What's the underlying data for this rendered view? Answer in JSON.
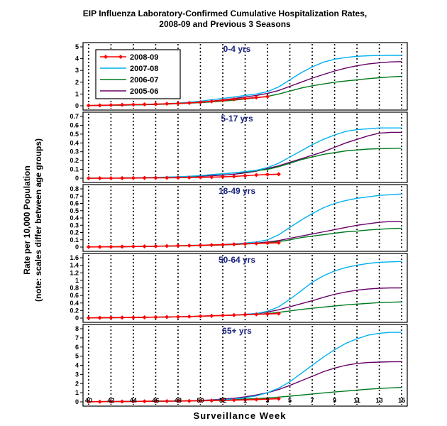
{
  "chart_data": {
    "type": "line",
    "title_line1": "EIP Influenza Laboratory-Confirmed Cumulative Hospitalization Rates,",
    "title_line2": "2008-09 and Previous 3 Seasons",
    "ylabel_line1": "Rate per 10,000 Population",
    "ylabel_line2": "(note: scales differ between age groups)",
    "xlabel": "Surveillance Week",
    "x_tick_labels": [
      "40",
      "42",
      "44",
      "46",
      "48",
      "50",
      "52",
      "1",
      "3",
      "5",
      "7",
      "9",
      "11",
      "13",
      "15"
    ],
    "x_weeks": [
      40,
      41,
      42,
      43,
      44,
      45,
      46,
      47,
      48,
      49,
      50,
      51,
      52,
      1,
      2,
      3,
      4,
      5,
      6,
      7,
      8,
      9,
      10,
      11,
      12,
      13,
      14,
      15,
      16
    ],
    "legend": [
      {
        "name": "2008-09",
        "color": "#ff0000"
      },
      {
        "name": "2007-08",
        "color": "#00b0f0"
      },
      {
        "name": "2006-07",
        "color": "#007a1f"
      },
      {
        "name": "2005-06",
        "color": "#660066"
      }
    ],
    "panels": [
      {
        "title": "0-4 yrs",
        "ylim": [
          0,
          5
        ],
        "yticks": [
          "0",
          "1",
          "2",
          "3",
          "4",
          "5"
        ],
        "series": [
          {
            "name": "2008-09",
            "values": [
              0.02,
              0.04,
              0.06,
              0.08,
              0.1,
              0.12,
              0.14,
              0.17,
              0.2,
              0.24,
              0.3,
              0.38,
              0.46,
              0.55,
              0.62,
              0.7,
              0.78
            ]
          },
          {
            "name": "2007-08",
            "values": [
              0.02,
              0.03,
              0.05,
              0.07,
              0.09,
              0.11,
              0.14,
              0.18,
              0.23,
              0.3,
              0.4,
              0.52,
              0.62,
              0.75,
              0.88,
              1.0,
              1.2,
              1.6,
              2.2,
              2.8,
              3.3,
              3.7,
              3.95,
              4.1,
              4.2,
              4.25,
              4.27,
              4.28,
              4.28
            ]
          },
          {
            "name": "2006-07",
            "values": [
              0.02,
              0.03,
              0.04,
              0.05,
              0.07,
              0.09,
              0.11,
              0.14,
              0.18,
              0.22,
              0.27,
              0.33,
              0.4,
              0.48,
              0.58,
              0.68,
              0.8,
              1.0,
              1.25,
              1.5,
              1.7,
              1.85,
              2.0,
              2.1,
              2.2,
              2.3,
              2.38,
              2.45,
              2.5
            ]
          },
          {
            "name": "2005-06",
            "values": [
              0.02,
              0.03,
              0.04,
              0.06,
              0.08,
              0.1,
              0.13,
              0.17,
              0.21,
              0.26,
              0.32,
              0.4,
              0.5,
              0.62,
              0.75,
              0.88,
              1.05,
              1.3,
              1.65,
              2.0,
              2.35,
              2.65,
              2.95,
              3.2,
              3.4,
              3.55,
              3.65,
              3.72,
              3.75
            ]
          }
        ]
      },
      {
        "title": "5-17 yrs",
        "ylim": [
          0,
          0.7
        ],
        "yticks": [
          "0",
          "0.1",
          "0.2",
          "0.3",
          "0.4",
          "0.5",
          "0.6",
          "0.7"
        ],
        "series": [
          {
            "name": "2008-09",
            "values": [
              0,
              0,
              0,
              0.001,
              0.002,
              0.003,
              0.004,
              0.005,
              0.006,
              0.008,
              0.01,
              0.012,
              0.015,
              0.02,
              0.028,
              0.036,
              0.042,
              0.045
            ]
          },
          {
            "name": "2007-08",
            "values": [
              0,
              0.001,
              0.002,
              0.003,
              0.005,
              0.007,
              0.01,
              0.013,
              0.017,
              0.022,
              0.03,
              0.04,
              0.05,
              0.06,
              0.075,
              0.09,
              0.12,
              0.17,
              0.24,
              0.31,
              0.38,
              0.44,
              0.49,
              0.53,
              0.55,
              0.56,
              0.57,
              0.57,
              0.57
            ]
          },
          {
            "name": "2006-07",
            "values": [
              0,
              0.001,
              0.002,
              0.003,
              0.004,
              0.006,
              0.008,
              0.011,
              0.015,
              0.02,
              0.028,
              0.04,
              0.05,
              0.06,
              0.07,
              0.085,
              0.1,
              0.13,
              0.17,
              0.21,
              0.24,
              0.27,
              0.29,
              0.31,
              0.32,
              0.33,
              0.335,
              0.337,
              0.34
            ]
          },
          {
            "name": "2005-06",
            "values": [
              0,
              0.001,
              0.002,
              0.003,
              0.004,
              0.005,
              0.007,
              0.01,
              0.013,
              0.017,
              0.022,
              0.028,
              0.035,
              0.045,
              0.06,
              0.08,
              0.11,
              0.14,
              0.18,
              0.22,
              0.26,
              0.3,
              0.35,
              0.4,
              0.44,
              0.48,
              0.51,
              0.52,
              0.52
            ]
          }
        ]
      },
      {
        "title": "18-49 yrs",
        "ylim": [
          0,
          0.8
        ],
        "yticks": [
          "0",
          "0.1",
          "0.2",
          "0.3",
          "0.4",
          "0.5",
          "0.6",
          "0.7",
          "0.8"
        ],
        "series": [
          {
            "name": "2008-09",
            "values": [
              0.002,
              0.003,
              0.004,
              0.006,
              0.008,
              0.01,
              0.012,
              0.015,
              0.018,
              0.021,
              0.024,
              0.028,
              0.033,
              0.038,
              0.044,
              0.05,
              0.056,
              0.06
            ]
          },
          {
            "name": "2007-08",
            "values": [
              0.002,
              0.003,
              0.004,
              0.006,
              0.008,
              0.01,
              0.012,
              0.015,
              0.018,
              0.022,
              0.026,
              0.031,
              0.037,
              0.045,
              0.056,
              0.07,
              0.1,
              0.17,
              0.27,
              0.37,
              0.46,
              0.54,
              0.6,
              0.64,
              0.67,
              0.69,
              0.71,
              0.72,
              0.73
            ]
          },
          {
            "name": "2006-07",
            "values": [
              0.002,
              0.003,
              0.004,
              0.005,
              0.007,
              0.009,
              0.011,
              0.013,
              0.016,
              0.019,
              0.022,
              0.026,
              0.03,
              0.035,
              0.042,
              0.05,
              0.06,
              0.075,
              0.1,
              0.13,
              0.15,
              0.17,
              0.19,
              0.21,
              0.22,
              0.235,
              0.245,
              0.255,
              0.26
            ]
          },
          {
            "name": "2005-06",
            "values": [
              0.002,
              0.003,
              0.004,
              0.005,
              0.007,
              0.009,
              0.011,
              0.013,
              0.016,
              0.019,
              0.022,
              0.026,
              0.031,
              0.037,
              0.045,
              0.055,
              0.07,
              0.09,
              0.12,
              0.15,
              0.18,
              0.21,
              0.24,
              0.27,
              0.3,
              0.32,
              0.34,
              0.35,
              0.35
            ]
          }
        ]
      },
      {
        "title": "50-64 yrs",
        "ylim": [
          0,
          1.6
        ],
        "yticks": [
          "0",
          "0.2",
          "0.4",
          "0.6",
          "0.8",
          "1",
          "1.2",
          "1.4",
          "1.6"
        ],
        "series": [
          {
            "name": "2008-09",
            "values": [
              0.005,
              0.008,
              0.011,
              0.014,
              0.017,
              0.02,
              0.024,
              0.028,
              0.033,
              0.04,
              0.05,
              0.06,
              0.07,
              0.08,
              0.09,
              0.1,
              0.11,
              0.12
            ]
          },
          {
            "name": "2007-08",
            "values": [
              0.005,
              0.008,
              0.011,
              0.014,
              0.017,
              0.02,
              0.024,
              0.028,
              0.033,
              0.04,
              0.05,
              0.06,
              0.07,
              0.08,
              0.095,
              0.12,
              0.18,
              0.3,
              0.5,
              0.72,
              0.95,
              1.12,
              1.25,
              1.34,
              1.4,
              1.45,
              1.48,
              1.49,
              1.5
            ]
          },
          {
            "name": "2006-07",
            "values": [
              0.005,
              0.008,
              0.011,
              0.014,
              0.017,
              0.02,
              0.024,
              0.028,
              0.033,
              0.04,
              0.05,
              0.06,
              0.07,
              0.08,
              0.09,
              0.1,
              0.12,
              0.15,
              0.19,
              0.23,
              0.26,
              0.29,
              0.32,
              0.35,
              0.37,
              0.39,
              0.41,
              0.42,
              0.43
            ]
          },
          {
            "name": "2005-06",
            "values": [
              0.005,
              0.008,
              0.011,
              0.014,
              0.017,
              0.02,
              0.024,
              0.028,
              0.033,
              0.04,
              0.05,
              0.06,
              0.07,
              0.08,
              0.1,
              0.12,
              0.16,
              0.22,
              0.3,
              0.38,
              0.46,
              0.55,
              0.63,
              0.69,
              0.74,
              0.77,
              0.79,
              0.8,
              0.8
            ]
          }
        ]
      },
      {
        "title": "65+ yrs",
        "ylim": [
          0,
          8
        ],
        "yticks": [
          "0",
          "1",
          "2",
          "3",
          "4",
          "5",
          "6",
          "7",
          "8"
        ],
        "series": [
          {
            "name": "2008-09",
            "values": [
              0.01,
              0.02,
              0.03,
              0.04,
              0.05,
              0.06,
              0.07,
              0.08,
              0.09,
              0.1,
              0.12,
              0.14,
              0.16,
              0.19,
              0.22,
              0.26,
              0.3,
              0.34
            ]
          },
          {
            "name": "2007-08",
            "values": [
              0.01,
              0.02,
              0.03,
              0.04,
              0.05,
              0.06,
              0.07,
              0.08,
              0.09,
              0.11,
              0.14,
              0.18,
              0.24,
              0.32,
              0.45,
              0.65,
              1.0,
              1.5,
              2.2,
              3.1,
              4.0,
              4.9,
              5.7,
              6.4,
              6.9,
              7.3,
              7.5,
              7.6,
              7.6
            ]
          },
          {
            "name": "2006-07",
            "values": [
              0.01,
              0.02,
              0.03,
              0.04,
              0.05,
              0.06,
              0.07,
              0.08,
              0.09,
              0.11,
              0.13,
              0.16,
              0.2,
              0.25,
              0.3,
              0.36,
              0.43,
              0.52,
              0.62,
              0.74,
              0.86,
              0.98,
              1.08,
              1.18,
              1.28,
              1.38,
              1.46,
              1.53,
              1.58
            ]
          },
          {
            "name": "2005-06",
            "values": [
              0.01,
              0.02,
              0.03,
              0.04,
              0.05,
              0.06,
              0.07,
              0.08,
              0.09,
              0.12,
              0.16,
              0.22,
              0.3,
              0.4,
              0.55,
              0.75,
              1.0,
              1.35,
              1.8,
              2.3,
              2.8,
              3.3,
              3.7,
              4.0,
              4.2,
              4.3,
              4.35,
              4.38,
              4.4
            ]
          }
        ]
      }
    ]
  }
}
